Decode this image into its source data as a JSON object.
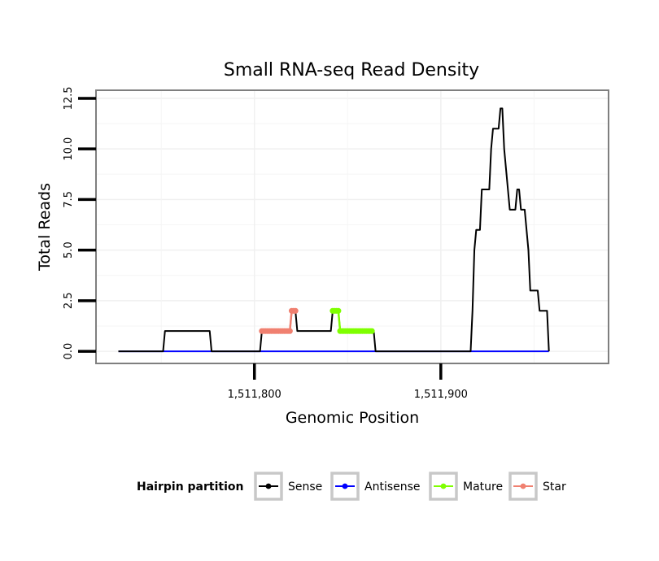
{
  "chart_data": {
    "type": "line",
    "title": "Small RNA-seq Read Density",
    "xlabel": "Genomic Position",
    "ylabel": "Total Reads",
    "xlim": [
      1511715,
      1511990
    ],
    "ylim": [
      -0.6,
      12.9
    ],
    "x_ticks": [
      1511800,
      1511900
    ],
    "x_tick_labels": [
      "1,511,800",
      "1,511,900"
    ],
    "y_ticks": [
      0,
      2.5,
      5,
      7.5,
      10,
      12.5
    ],
    "y_tick_labels": [
      "0.0",
      "2.5",
      "5.0",
      "7.5",
      "10.0",
      "12.5"
    ],
    "grid": true,
    "legend": {
      "title": "Hairpin partition",
      "position": "bottom",
      "entries": [
        {
          "label": "Sense",
          "color": "#000000"
        },
        {
          "label": "Antisense",
          "color": "#0000ff"
        },
        {
          "label": "Mature",
          "color": "#7fff00"
        },
        {
          "label": "Star",
          "color": "#f08070"
        }
      ]
    },
    "series": [
      {
        "name": "Sense",
        "color": "#000000",
        "points": [
          [
            1511727,
            0
          ],
          [
            1511751,
            0
          ],
          [
            1511752,
            1
          ],
          [
            1511776,
            1
          ],
          [
            1511777,
            0
          ],
          [
            1511803,
            0
          ],
          [
            1511804,
            1
          ],
          [
            1511819,
            1
          ],
          [
            1511820,
            2
          ],
          [
            1511822,
            2
          ],
          [
            1511823,
            1
          ],
          [
            1511841,
            1
          ],
          [
            1511842,
            2
          ],
          [
            1511845,
            2
          ],
          [
            1511846,
            1
          ],
          [
            1511864,
            1
          ],
          [
            1511865,
            0
          ],
          [
            1511916,
            0
          ],
          [
            1511917,
            2
          ],
          [
            1511918,
            5
          ],
          [
            1511919,
            6
          ],
          [
            1511921,
            6
          ],
          [
            1511922,
            8
          ],
          [
            1511926,
            8
          ],
          [
            1511927,
            10
          ],
          [
            1511928,
            11
          ],
          [
            1511931,
            11
          ],
          [
            1511932,
            12
          ],
          [
            1511933,
            12
          ],
          [
            1511934,
            10
          ],
          [
            1511937,
            7
          ],
          [
            1511940,
            7
          ],
          [
            1511941,
            8
          ],
          [
            1511942,
            8
          ],
          [
            1511943,
            7
          ],
          [
            1511945,
            7
          ],
          [
            1511946,
            6
          ],
          [
            1511947,
            5
          ],
          [
            1511948,
            3
          ],
          [
            1511952,
            3
          ],
          [
            1511953,
            2
          ],
          [
            1511957,
            2
          ],
          [
            1511958,
            0
          ]
        ]
      },
      {
        "name": "Antisense",
        "color": "#0000ff",
        "points": [
          [
            1511727,
            0
          ],
          [
            1511958,
            0
          ]
        ]
      },
      {
        "name": "Mature",
        "color": "#7fff00",
        "points": [
          [
            1511842,
            2
          ],
          [
            1511843,
            2
          ],
          [
            1511844,
            2
          ],
          [
            1511845,
            2
          ],
          [
            1511846,
            1
          ],
          [
            1511847,
            1
          ],
          [
            1511848,
            1
          ],
          [
            1511849,
            1
          ],
          [
            1511850,
            1
          ],
          [
            1511851,
            1
          ],
          [
            1511852,
            1
          ],
          [
            1511853,
            1
          ],
          [
            1511854,
            1
          ],
          [
            1511855,
            1
          ],
          [
            1511856,
            1
          ],
          [
            1511857,
            1
          ],
          [
            1511858,
            1
          ],
          [
            1511859,
            1
          ],
          [
            1511860,
            1
          ],
          [
            1511861,
            1
          ],
          [
            1511862,
            1
          ],
          [
            1511863,
            1
          ]
        ]
      },
      {
        "name": "Star",
        "color": "#f08070",
        "points": [
          [
            1511804,
            1
          ],
          [
            1511805,
            1
          ],
          [
            1511806,
            1
          ],
          [
            1511807,
            1
          ],
          [
            1511808,
            1
          ],
          [
            1511809,
            1
          ],
          [
            1511810,
            1
          ],
          [
            1511811,
            1
          ],
          [
            1511812,
            1
          ],
          [
            1511813,
            1
          ],
          [
            1511814,
            1
          ],
          [
            1511815,
            1
          ],
          [
            1511816,
            1
          ],
          [
            1511817,
            1
          ],
          [
            1511818,
            1
          ],
          [
            1511819,
            1
          ],
          [
            1511820,
            2
          ],
          [
            1511821,
            2
          ],
          [
            1511822,
            2
          ]
        ]
      }
    ]
  }
}
